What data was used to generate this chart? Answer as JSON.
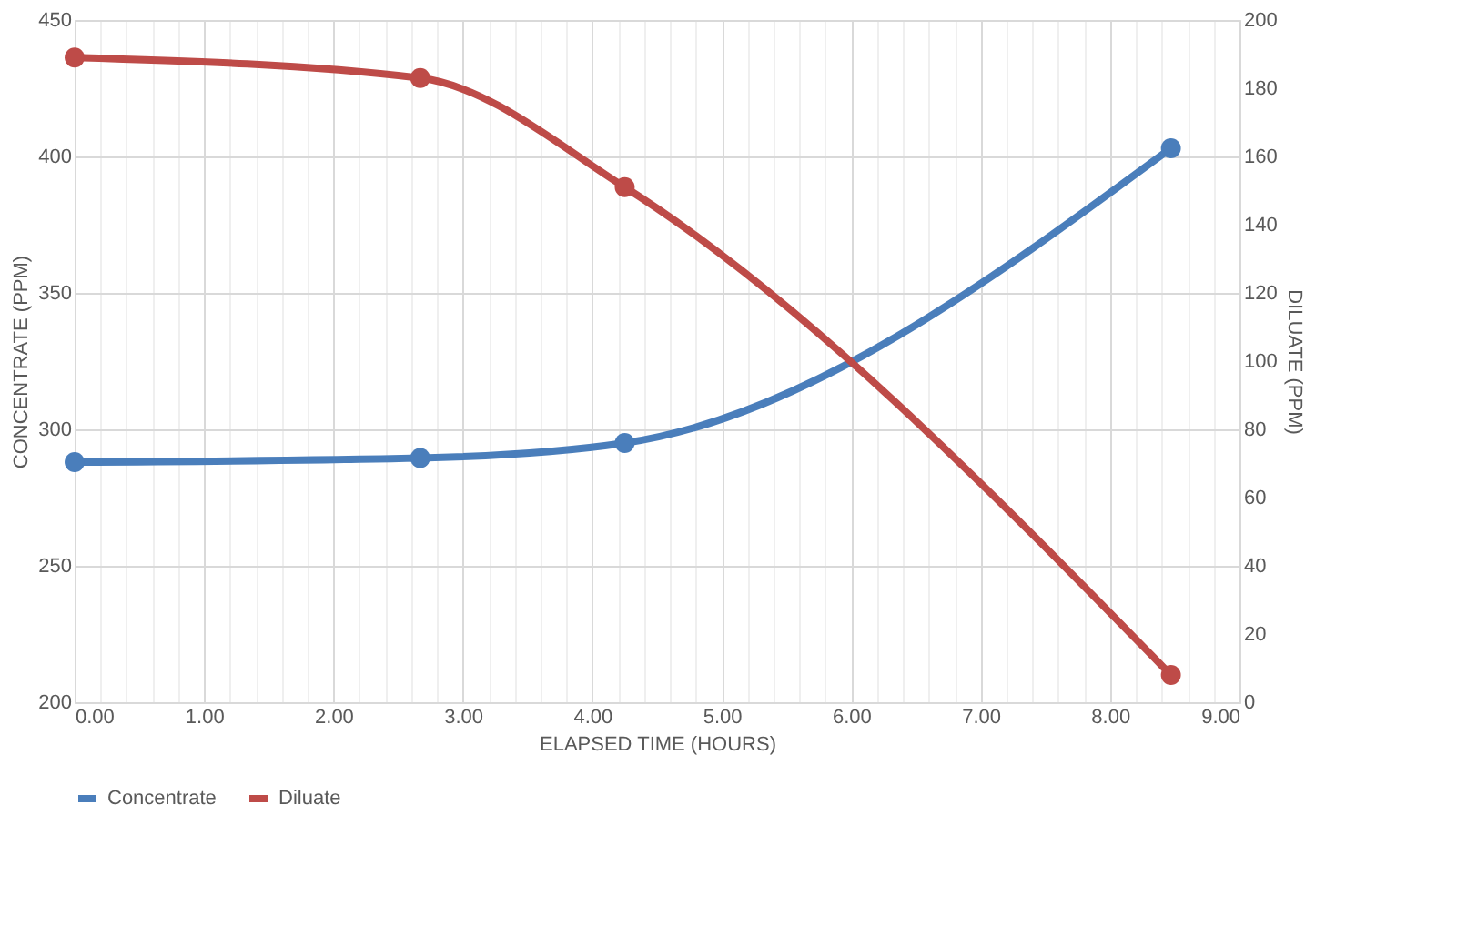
{
  "chart_data": {
    "type": "line",
    "xlabel": "ELAPSED TIME (HOURS)",
    "ylabel": "CONCENTRATE (PPM)",
    "y2label": "DILUATE (PPM)",
    "series": [
      {
        "name": "Concentrate",
        "color": "#4a7ebb",
        "x": [
          0,
          2.67,
          4.25,
          8.47
        ],
        "values": [
          288,
          289.5,
          295,
          403
        ]
      },
      {
        "name": "Diluate",
        "color": "#be4b48",
        "axis": "y2",
        "x": [
          0,
          2.67,
          4.25,
          8.47
        ],
        "values": [
          189,
          183,
          151,
          8
        ]
      }
    ],
    "xlim": [
      0,
      9
    ],
    "xticks": [
      {
        "value": 0,
        "label": "0.00"
      },
      {
        "value": 0.2,
        "label": null
      },
      {
        "value": 0.4,
        "label": null
      },
      {
        "value": 0.6,
        "label": null
      },
      {
        "value": 0.8,
        "label": null
      },
      {
        "value": 1,
        "label": "1.00"
      },
      {
        "value": 1.2,
        "label": null
      },
      {
        "value": 1.4,
        "label": null
      },
      {
        "value": 1.6,
        "label": null
      },
      {
        "value": 1.8,
        "label": null
      },
      {
        "value": 2,
        "label": "2.00"
      },
      {
        "value": 2.2,
        "label": null
      },
      {
        "value": 2.4,
        "label": null
      },
      {
        "value": 2.6,
        "label": null
      },
      {
        "value": 2.8,
        "label": null
      },
      {
        "value": 3,
        "label": "3.00"
      },
      {
        "value": 3.2,
        "label": null
      },
      {
        "value": 3.4,
        "label": null
      },
      {
        "value": 3.6,
        "label": null
      },
      {
        "value": 3.8,
        "label": null
      },
      {
        "value": 4,
        "label": "4.00"
      },
      {
        "value": 4.2,
        "label": null
      },
      {
        "value": 4.4,
        "label": null
      },
      {
        "value": 4.6,
        "label": null
      },
      {
        "value": 4.8,
        "label": null
      },
      {
        "value": 5,
        "label": "5.00"
      },
      {
        "value": 5.2,
        "label": null
      },
      {
        "value": 5.4,
        "label": null
      },
      {
        "value": 5.6,
        "label": null
      },
      {
        "value": 5.8,
        "label": null
      },
      {
        "value": 6,
        "label": "6.00"
      },
      {
        "value": 6.2,
        "label": null
      },
      {
        "value": 6.4,
        "label": null
      },
      {
        "value": 6.6,
        "label": null
      },
      {
        "value": 6.8,
        "label": null
      },
      {
        "value": 7,
        "label": "7.00"
      },
      {
        "value": 7.2,
        "label": null
      },
      {
        "value": 7.4,
        "label": null
      },
      {
        "value": 7.6,
        "label": null
      },
      {
        "value": 7.8,
        "label": null
      },
      {
        "value": 8,
        "label": "8.00"
      },
      {
        "value": 8.2,
        "label": null
      },
      {
        "value": 8.4,
        "label": null
      },
      {
        "value": 8.6,
        "label": null
      },
      {
        "value": 8.8,
        "label": null
      },
      {
        "value": 9,
        "label": "9.00"
      }
    ],
    "ylim": [
      200,
      450
    ],
    "yticks": [
      200,
      250,
      300,
      350,
      400,
      450
    ],
    "y2lim": [
      0,
      200
    ],
    "y2ticks": [
      0,
      20,
      40,
      60,
      80,
      100,
      120,
      140,
      160,
      180,
      200
    ],
    "grid": true,
    "legend": "bottom",
    "marker": "circle",
    "line_style": "solid"
  }
}
